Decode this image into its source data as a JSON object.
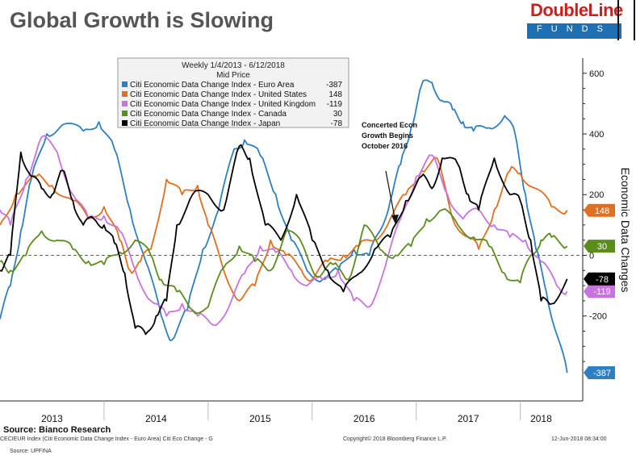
{
  "header": {
    "title": "Global Growth is Slowing",
    "logo_brand": "DoubleLine",
    "logo_sub": "FUNDS"
  },
  "legend": {
    "title": "Weekly 1/4/2013 - 6/12/2018",
    "subtitle": "Mid Price"
  },
  "annotation": {
    "line1": "Concerted Econ",
    "line2": "Growth Begins",
    "line3": "October 2016"
  },
  "footer": {
    "source": "Source:  Bianco Research",
    "ticker": "CECIEUR Index (Citi Economic Data Change Index - Euro Area) Citi Eco Change - G",
    "copyright": "Copyright© 2018 Bloomberg Finance L.P.",
    "date": "12-Jun-2018 08:34:00",
    "source2": "Source: UPFINA"
  },
  "chart_data": {
    "type": "line",
    "title": "Global Growth is Slowing",
    "ylabel": "Economic Data Changes",
    "ylim": [
      -480,
      650
    ],
    "xlim": [
      2013.0,
      2018.6
    ],
    "y_ticks": [
      600,
      400,
      200,
      0,
      -200
    ],
    "y_tick_labels": [
      "600",
      "400",
      "200",
      "0",
      "-200"
    ],
    "x_tick_labels": [
      "2013",
      "2014",
      "2015",
      "2016",
      "2017",
      "2018"
    ],
    "x_tick_positions": [
      2013.5,
      2014.5,
      2015.5,
      2016.5,
      2017.5,
      2018.2
    ],
    "zero_line": "dashed",
    "series": [
      {
        "name": "Citi Economic Data Change Index - Euro Area",
        "last": "-387",
        "color": "#2f7fc1",
        "x": [
          2013.0,
          2013.1,
          2013.2,
          2013.3,
          2013.45,
          2013.6,
          2013.8,
          2013.95,
          2014.1,
          2014.25,
          2014.4,
          2014.55,
          2014.65,
          2014.8,
          2014.95,
          2015.1,
          2015.25,
          2015.35,
          2015.5,
          2015.65,
          2015.8,
          2015.95,
          2016.1,
          2016.25,
          2016.4,
          2016.55,
          2016.65,
          2016.75,
          2016.85,
          2016.95,
          2017.05,
          2017.15,
          2017.25,
          2017.35,
          2017.45,
          2017.55,
          2017.7,
          2017.85,
          2017.95,
          2018.05,
          2018.15,
          2018.25,
          2018.35,
          2018.45
        ],
        "values": [
          -210,
          -100,
          80,
          250,
          400,
          430,
          410,
          440,
          350,
          150,
          -20,
          -200,
          -280,
          -180,
          20,
          150,
          350,
          380,
          330,
          200,
          50,
          -50,
          -80,
          -50,
          20,
          0,
          80,
          180,
          300,
          420,
          560,
          570,
          510,
          480,
          440,
          410,
          420,
          460,
          400,
          200,
          20,
          -120,
          -260,
          -387
        ]
      },
      {
        "name": "Citi Economic Data Change Index - United States",
        "last": "148",
        "color": "#e0701f",
        "x": [
          2013.0,
          2013.15,
          2013.35,
          2013.5,
          2013.7,
          2013.85,
          2014.0,
          2014.15,
          2014.25,
          2014.35,
          2014.45,
          2014.6,
          2014.75,
          2014.9,
          2015.0,
          2015.15,
          2015.3,
          2015.45,
          2015.6,
          2015.75,
          2015.9,
          2016.0,
          2016.15,
          2016.3,
          2016.45,
          2016.6,
          2016.75,
          2016.9,
          2017.05,
          2017.2,
          2017.35,
          2017.5,
          2017.6,
          2017.75,
          2017.9,
          2018.0,
          2018.15,
          2018.3,
          2018.45
        ],
        "values": [
          100,
          200,
          260,
          230,
          180,
          120,
          160,
          50,
          -50,
          -20,
          20,
          250,
          200,
          230,
          100,
          -50,
          -150,
          -100,
          50,
          0,
          -50,
          -80,
          -20,
          0,
          30,
          50,
          120,
          200,
          280,
          320,
          120,
          60,
          20,
          150,
          280,
          270,
          220,
          160,
          148
        ]
      },
      {
        "name": "Citi Economic Data Change Index - United Kingdom",
        "last": "-119",
        "color": "#c873e0",
        "x": [
          2013.0,
          2013.1,
          2013.25,
          2013.4,
          2013.55,
          2013.7,
          2013.85,
          2014.0,
          2014.15,
          2014.3,
          2014.45,
          2014.6,
          2014.75,
          2014.9,
          2015.05,
          2015.2,
          2015.35,
          2015.5,
          2015.65,
          2015.8,
          2015.95,
          2016.1,
          2016.25,
          2016.4,
          2016.55,
          2016.7,
          2016.85,
          2017.0,
          2017.15,
          2017.3,
          2017.45,
          2017.6,
          2017.75,
          2017.9,
          2018.05,
          2018.2,
          2018.35,
          2018.45
        ],
        "values": [
          150,
          100,
          250,
          390,
          340,
          200,
          120,
          130,
          80,
          -50,
          -150,
          -200,
          -160,
          -200,
          -230,
          -170,
          -60,
          30,
          10,
          -50,
          -100,
          -80,
          -50,
          -150,
          -170,
          -40,
          120,
          260,
          330,
          200,
          120,
          150,
          100,
          60,
          50,
          -20,
          -100,
          -119
        ]
      },
      {
        "name": "Citi Economic Data Change Index - Canada",
        "last": "30",
        "color": "#5c8c1c",
        "x": [
          2013.0,
          2013.1,
          2013.25,
          2013.4,
          2013.55,
          2013.7,
          2013.85,
          2014.0,
          2014.15,
          2014.3,
          2014.45,
          2014.55,
          2014.7,
          2014.85,
          2015.0,
          2015.15,
          2015.3,
          2015.45,
          2015.6,
          2015.75,
          2015.9,
          2016.05,
          2016.2,
          2016.35,
          2016.5,
          2016.65,
          2016.8,
          2016.95,
          2017.1,
          2017.25,
          2017.4,
          2017.55,
          2017.7,
          2017.85,
          2018.0,
          2018.1,
          2018.2,
          2018.3,
          2018.45
        ],
        "values": [
          -20,
          -50,
          0,
          80,
          50,
          20,
          -20,
          -30,
          10,
          50,
          0,
          -80,
          -120,
          -180,
          -170,
          -40,
          30,
          -20,
          -50,
          80,
          40,
          -70,
          -30,
          -80,
          100,
          20,
          0,
          30,
          120,
          150,
          100,
          60,
          30,
          -60,
          -90,
          0,
          50,
          60,
          30
        ]
      },
      {
        "name": "Citi Economic Data Change Index - Japan",
        "last": "-78",
        "color": "#000000",
        "x": [
          2013.0,
          2013.1,
          2013.2,
          2013.3,
          2013.4,
          2013.5,
          2013.6,
          2013.7,
          2013.8,
          2013.9,
          2014.0,
          2014.1,
          2014.2,
          2014.3,
          2014.4,
          2014.5,
          2014.6,
          2014.7,
          2014.85,
          2015.0,
          2015.15,
          2015.3,
          2015.4,
          2015.55,
          2015.7,
          2015.85,
          2016.0,
          2016.15,
          2016.3,
          2016.45,
          2016.6,
          2016.75,
          2016.9,
          2017.05,
          2017.15,
          2017.25,
          2017.4,
          2017.5,
          2017.6,
          2017.75,
          2017.9,
          2018.0,
          2018.1,
          2018.2,
          2018.3,
          2018.45
        ],
        "values": [
          -50,
          0,
          340,
          260,
          220,
          200,
          280,
          180,
          100,
          120,
          100,
          40,
          -60,
          -240,
          -260,
          -200,
          -150,
          100,
          200,
          200,
          150,
          360,
          320,
          100,
          50,
          200,
          50,
          -50,
          -120,
          -60,
          20,
          60,
          180,
          260,
          220,
          320,
          300,
          200,
          150,
          320,
          200,
          180,
          50,
          -150,
          -160,
          -78
        ]
      }
    ]
  }
}
